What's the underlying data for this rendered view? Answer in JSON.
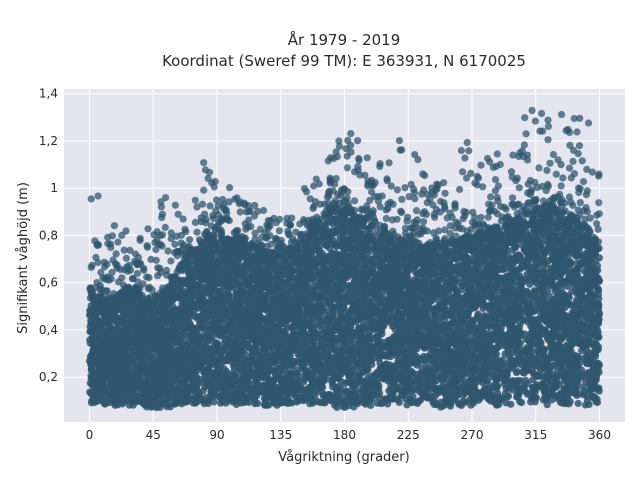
{
  "chart_data": {
    "type": "scatter",
    "title_line1": "År 1979 - 2019",
    "title_line2": "Koordinat (Sweref 99 TM): E 363931, N 6170025",
    "xlabel": "Vågriktning (grader)",
    "ylabel": "Signifikant våghöjd (m)",
    "xlim": [
      -18,
      378
    ],
    "ylim": [
      0.01,
      1.42
    ],
    "x_ticks": [
      0,
      45,
      90,
      135,
      180,
      225,
      270,
      315,
      360
    ],
    "x_tick_labels": [
      "0",
      "45",
      "90",
      "135",
      "180",
      "225",
      "270",
      "315",
      "360"
    ],
    "y_ticks": [
      0.2,
      0.4,
      0.6,
      0.8,
      1.0,
      1.2,
      1.4
    ],
    "y_tick_labels": [
      "0,2",
      "0,4",
      "0,6",
      "0,8",
      "1",
      "1,2",
      "1,4"
    ],
    "grid": true,
    "marker_color": "#2f566e",
    "plot_background": "#e5e5ef",
    "envelope": {
      "direction_deg": [
        0,
        10,
        20,
        30,
        40,
        50,
        60,
        70,
        80,
        90,
        100,
        110,
        120,
        130,
        140,
        150,
        160,
        170,
        180,
        190,
        200,
        210,
        220,
        230,
        240,
        250,
        260,
        270,
        280,
        290,
        300,
        310,
        320,
        330,
        340,
        350,
        360
      ],
      "min_height_m": [
        0.09,
        0.08,
        0.08,
        0.08,
        0.07,
        0.07,
        0.07,
        0.08,
        0.08,
        0.08,
        0.08,
        0.08,
        0.08,
        0.08,
        0.08,
        0.08,
        0.07,
        0.07,
        0.07,
        0.07,
        0.08,
        0.08,
        0.08,
        0.08,
        0.07,
        0.07,
        0.07,
        0.08,
        0.08,
        0.08,
        0.08,
        0.08,
        0.08,
        0.08,
        0.08,
        0.08,
        0.09
      ],
      "dense_max_m": [
        0.56,
        0.52,
        0.55,
        0.58,
        0.52,
        0.54,
        0.62,
        0.72,
        0.78,
        0.8,
        0.78,
        0.76,
        0.74,
        0.72,
        0.74,
        0.75,
        0.85,
        0.9,
        0.92,
        0.88,
        0.82,
        0.8,
        0.78,
        0.76,
        0.74,
        0.76,
        0.78,
        0.8,
        0.82,
        0.84,
        0.86,
        0.9,
        0.92,
        0.9,
        0.88,
        0.84,
        0.75
      ],
      "outlier_max_m": [
        1.03,
        0.95,
        0.85,
        0.82,
        0.88,
        0.98,
        0.95,
        0.9,
        1.13,
        1.02,
        1.01,
        0.95,
        0.92,
        0.88,
        0.9,
        0.98,
        1.1,
        1.21,
        1.26,
        1.2,
        1.12,
        1.15,
        1.23,
        1.15,
        1.05,
        1.05,
        1.18,
        1.25,
        1.18,
        1.15,
        1.22,
        1.37,
        1.36,
        1.33,
        1.3,
        1.36,
        1.05
      ]
    }
  }
}
